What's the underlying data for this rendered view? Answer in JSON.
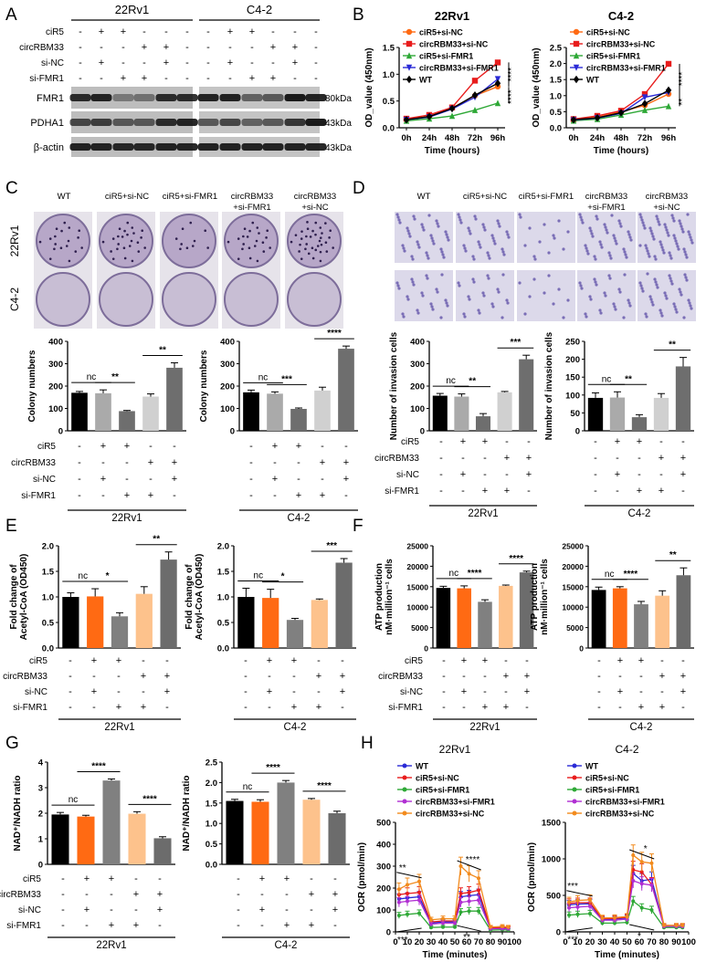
{
  "colors": {
    "wt": "#000000",
    "cir5_sinc": "#ff6a13",
    "circ_sinc": "#e81c1c",
    "cir5_sifmr1": "#2ea836",
    "circ_sifmr1": "#2a2ad6",
    "circ_sinc_h": "#f28b1d",
    "circ_sifmr1_h": "#b02fd2",
    "bar_black": "#000000",
    "bar_orange": "#ff6a13",
    "bar_grey": "#808080",
    "bar_light_orange": "#fdc28c",
    "bar_light_grey": "#d4d4d4",
    "bar_dark_grey": "#6c6c6c",
    "bar_mid_grey": "#a8a8a8",
    "bar_very_light_grey": "#dddddd"
  },
  "panels": {
    "A": {
      "letter": "A",
      "cell_lines": [
        "22Rv1",
        "C4-2"
      ],
      "row_labels": [
        "ciR5",
        "circRBM33",
        "si-NC",
        "si-FMR1"
      ],
      "signs_22rv1": [
        [
          "-",
          "+",
          "+",
          "-",
          "-",
          "-"
        ],
        [
          "-",
          "-",
          "-",
          "+",
          "+",
          "-"
        ],
        [
          "-",
          "+",
          "-",
          "-",
          "+",
          "-"
        ],
        [
          "-",
          "-",
          "+",
          "+",
          "-",
          "-"
        ]
      ],
      "signs_c42": [
        [
          "-",
          "+",
          "+",
          "-",
          "-",
          "-"
        ],
        [
          "-",
          "-",
          "-",
          "+",
          "+",
          "-"
        ],
        [
          "-",
          "+",
          "-",
          "-",
          "+",
          "-"
        ],
        [
          "-",
          "-",
          "+",
          "+",
          "-",
          "-"
        ]
      ],
      "blots": [
        {
          "name": "FMR1",
          "kda": "80kDa"
        },
        {
          "name": "PDHA1",
          "kda": "43kDa"
        },
        {
          "name": "β-actin",
          "kda": "43kDa"
        }
      ]
    },
    "B": {
      "letter": "B"
    },
    "C": {
      "letter": "C",
      "col_labels": [
        "WT",
        "ciR5+si-NC",
        "ciR5+si-FMR1",
        "circRBM33\n+si-FMR1",
        "circRBM33\n+si-NC"
      ],
      "row_labels": [
        "22Rv1",
        "C4-2"
      ]
    },
    "D": {
      "letter": "D",
      "col_labels": [
        "WT",
        "ciR5+si-NC",
        "ciR5+si-FMR1",
        "circRBM33\n+si-FMR1",
        "circRBM33\n+si-NC"
      ]
    },
    "E": {
      "letter": "E"
    },
    "F": {
      "letter": "F"
    },
    "G": {
      "letter": "G"
    },
    "H": {
      "letter": "H"
    }
  },
  "sign_table": {
    "labels": [
      "ciR5",
      "circRBM33",
      "si-NC",
      "si-FMR1"
    ],
    "signs": [
      [
        "-",
        "+",
        "+",
        "-",
        "-"
      ],
      [
        "-",
        "-",
        "-",
        "+",
        "+"
      ],
      [
        "-",
        "+",
        "-",
        "-",
        "+"
      ],
      [
        "-",
        "-",
        "+",
        "+",
        "-"
      ]
    ]
  },
  "chart_data": [
    {
      "id": "B1",
      "type": "line",
      "title": "22Rv1",
      "xlabel": "Time (hours)",
      "ylabel": "OD_value (450nm)",
      "categories": [
        "0h",
        "24h",
        "48h",
        "72h",
        "96h"
      ],
      "ylim": [
        0,
        1.5
      ],
      "yticks": [
        0.0,
        0.5,
        1.0,
        1.5
      ],
      "legend": [
        "ciR5+si-NC",
        "circRBM33+si-NC",
        "ciR5+si-FMR1",
        "circRBM33+si-FMR1",
        "WT"
      ],
      "series": [
        {
          "name": "ciR5+si-NC",
          "color": "#ff6a13",
          "marker": "circle",
          "values": [
            0.16,
            0.21,
            0.37,
            0.6,
            0.77
          ]
        },
        {
          "name": "circRBM33+si-NC",
          "color": "#e81c1c",
          "marker": "square",
          "values": [
            0.17,
            0.24,
            0.38,
            0.88,
            1.22
          ]
        },
        {
          "name": "ciR5+si-FMR1",
          "color": "#2ea836",
          "marker": "triangle",
          "values": [
            0.13,
            0.17,
            0.22,
            0.33,
            0.46
          ]
        },
        {
          "name": "circRBM33+si-FMR1",
          "color": "#2a2ad6",
          "marker": "triangle-down",
          "values": [
            0.15,
            0.2,
            0.35,
            0.57,
            0.91
          ]
        },
        {
          "name": "WT",
          "color": "#000000",
          "marker": "diamond",
          "values": [
            0.15,
            0.21,
            0.36,
            0.61,
            0.83
          ]
        }
      ],
      "annotations": [
        "****",
        "****"
      ]
    },
    {
      "id": "B2",
      "type": "line",
      "title": "C4-2",
      "xlabel": "Time (hours)",
      "ylabel": "OD_value (450nm)",
      "categories": [
        "0h",
        "24h",
        "48h",
        "72h",
        "96h"
      ],
      "ylim": [
        0,
        2.5
      ],
      "yticks": [
        0.0,
        0.5,
        1.0,
        1.5,
        2.0,
        2.5
      ],
      "legend": [
        "ciR5+si-NC",
        "circRBM33+si-NC",
        "ciR5+si-FMR1",
        "circRBM33+si-FMR1",
        "WT"
      ],
      "series": [
        {
          "name": "ciR5+si-NC",
          "color": "#ff6a13",
          "marker": "circle",
          "values": [
            0.25,
            0.33,
            0.5,
            0.7,
            1.05
          ]
        },
        {
          "name": "circRBM33+si-NC",
          "color": "#e81c1c",
          "marker": "square",
          "values": [
            0.27,
            0.37,
            0.53,
            1.05,
            1.99
          ]
        },
        {
          "name": "ciR5+si-FMR1",
          "color": "#2ea836",
          "marker": "triangle",
          "values": [
            0.22,
            0.27,
            0.4,
            0.55,
            0.67
          ]
        },
        {
          "name": "circRBM33+si-FMR1",
          "color": "#2a2ad6",
          "marker": "triangle-down",
          "values": [
            0.24,
            0.3,
            0.45,
            0.95,
            1.1
          ]
        },
        {
          "name": "WT",
          "color": "#000000",
          "marker": "diamond",
          "values": [
            0.25,
            0.31,
            0.47,
            0.75,
            1.17
          ]
        }
      ],
      "annotations": [
        "****",
        "**"
      ]
    },
    {
      "id": "C1",
      "type": "bar",
      "ylabel": "Colony numbers",
      "ylim": [
        0,
        400
      ],
      "yticks": [
        0,
        100,
        200,
        300,
        400
      ],
      "values": [
        170,
        168,
        88,
        153,
        282
      ],
      "errors": [
        6,
        15,
        3,
        12,
        22
      ],
      "colors": [
        "#000000",
        "#aaaaaa",
        "#6e6e6e",
        "#d0d0d0",
        "#6e6e6e"
      ],
      "sig": [
        {
          "from": 0,
          "to": 1,
          "label": "nc"
        },
        {
          "from": 1,
          "to": 2,
          "label": "**"
        },
        {
          "from": 3,
          "to": 4,
          "label": "**"
        }
      ],
      "group": "22Rv1"
    },
    {
      "id": "C2",
      "type": "bar",
      "ylabel": "Colony numbers",
      "ylim": [
        0,
        400
      ],
      "yticks": [
        0,
        100,
        200,
        300,
        400
      ],
      "values": [
        172,
        166,
        98,
        180,
        367
      ],
      "errors": [
        10,
        8,
        4,
        15,
        12
      ],
      "colors": [
        "#000000",
        "#aaaaaa",
        "#6e6e6e",
        "#d0d0d0",
        "#6e6e6e"
      ],
      "sig": [
        {
          "from": 0,
          "to": 1,
          "label": "nc"
        },
        {
          "from": 1,
          "to": 2,
          "label": "***"
        },
        {
          "from": 3,
          "to": 4,
          "label": "****"
        }
      ],
      "group": "C4-2"
    },
    {
      "id": "D1",
      "type": "bar",
      "ylabel": "Number of invasion cells",
      "ylim": [
        0,
        400
      ],
      "yticks": [
        0,
        100,
        200,
        300,
        400
      ],
      "values": [
        157,
        153,
        65,
        172,
        320
      ],
      "errors": [
        10,
        12,
        12,
        4,
        18
      ],
      "colors": [
        "#000000",
        "#aaaaaa",
        "#6e6e6e",
        "#d0d0d0",
        "#6e6e6e"
      ],
      "sig": [
        {
          "from": 0,
          "to": 1,
          "label": "nc"
        },
        {
          "from": 1,
          "to": 2,
          "label": "**"
        },
        {
          "from": 3,
          "to": 4,
          "label": "***"
        }
      ],
      "group": "22Rv1"
    },
    {
      "id": "D2",
      "type": "bar",
      "ylabel": "Number of invasion cells",
      "ylim": [
        0,
        250
      ],
      "yticks": [
        0,
        50,
        100,
        150,
        200,
        250
      ],
      "values": [
        92,
        93,
        38,
        92,
        180
      ],
      "errors": [
        14,
        16,
        7,
        12,
        25
      ],
      "colors": [
        "#000000",
        "#aaaaaa",
        "#6e6e6e",
        "#d0d0d0",
        "#6e6e6e"
      ],
      "sig": [
        {
          "from": 0,
          "to": 1,
          "label": "nc"
        },
        {
          "from": 1,
          "to": 2,
          "label": "**"
        },
        {
          "from": 3,
          "to": 4,
          "label": "**"
        }
      ],
      "group": "C4-2"
    },
    {
      "id": "E1",
      "type": "bar",
      "ylabel": "Fold change of\nAcetyl-CoA (OD450)",
      "ylim": [
        0,
        2.0
      ],
      "yticks": [
        0.0,
        0.5,
        1.0,
        1.5,
        2.0
      ],
      "values": [
        1.0,
        1.01,
        0.62,
        1.06,
        1.73
      ],
      "errors": [
        0.08,
        0.15,
        0.07,
        0.14,
        0.15
      ],
      "colors": [
        "#000000",
        "#ff6a13",
        "#808080",
        "#fdc28c",
        "#6c6c6c"
      ],
      "sig": [
        {
          "from": 0,
          "to": 1,
          "label": "nc"
        },
        {
          "from": 1,
          "to": 2,
          "label": "*"
        },
        {
          "from": 3,
          "to": 4,
          "label": "**"
        }
      ],
      "group": "22Rv1"
    },
    {
      "id": "E2",
      "type": "bar",
      "ylabel": "Fold change of\nAcetyl-CoA (OD450)",
      "ylim": [
        0,
        2.0
      ],
      "yticks": [
        0.0,
        0.5,
        1.0,
        1.5,
        2.0
      ],
      "values": [
        1.0,
        0.98,
        0.55,
        0.94,
        1.67
      ],
      "errors": [
        0.17,
        0.17,
        0.03,
        0.02,
        0.08
      ],
      "colors": [
        "#000000",
        "#ff6a13",
        "#808080",
        "#fdc28c",
        "#6c6c6c"
      ],
      "sig": [
        {
          "from": 0,
          "to": 1,
          "label": "nc"
        },
        {
          "from": 1,
          "to": 2,
          "label": "*"
        },
        {
          "from": 3,
          "to": 4,
          "label": "***"
        }
      ],
      "group": "C4-2"
    },
    {
      "id": "F1",
      "type": "bar",
      "ylabel": "ATP production\nnM·million⁻¹ cells",
      "ylim": [
        0,
        25000
      ],
      "yticks": [
        0,
        5000,
        10000,
        15000,
        20000,
        25000
      ],
      "values": [
        14700,
        14600,
        11300,
        15200,
        18500
      ],
      "errors": [
        400,
        600,
        500,
        200,
        300
      ],
      "colors": [
        "#000000",
        "#ff6a13",
        "#808080",
        "#fdc28c",
        "#6c6c6c"
      ],
      "sig": [
        {
          "from": 0,
          "to": 1,
          "label": "nc"
        },
        {
          "from": 1,
          "to": 2,
          "label": "****"
        },
        {
          "from": 3,
          "to": 4,
          "label": "****"
        }
      ],
      "group": "22Rv1"
    },
    {
      "id": "F2",
      "type": "bar",
      "ylabel": "ATP production\nnM·million⁻¹ cells",
      "ylim": [
        0,
        25000
      ],
      "yticks": [
        0,
        5000,
        10000,
        15000,
        20000,
        25000
      ],
      "values": [
        14200,
        14600,
        10700,
        12800,
        17800
      ],
      "errors": [
        700,
        400,
        700,
        1200,
        1800
      ],
      "colors": [
        "#000000",
        "#ff6a13",
        "#808080",
        "#fdc28c",
        "#6c6c6c"
      ],
      "sig": [
        {
          "from": 0,
          "to": 1,
          "label": "nc"
        },
        {
          "from": 1,
          "to": 2,
          "label": "****"
        },
        {
          "from": 3,
          "to": 4,
          "label": "**"
        }
      ],
      "group": "C4-2"
    },
    {
      "id": "G1",
      "type": "bar",
      "ylabel": "NAD⁺/NADH ratio",
      "ylim": [
        0,
        4
      ],
      "yticks": [
        0,
        1,
        2,
        3,
        4
      ],
      "values": [
        1.95,
        1.87,
        3.28,
        1.98,
        1.02
      ],
      "errors": [
        0.08,
        0.05,
        0.06,
        0.08,
        0.06
      ],
      "colors": [
        "#000000",
        "#ff6a13",
        "#808080",
        "#fdc28c",
        "#6c6c6c"
      ],
      "sig": [
        {
          "from": 0,
          "to": 1,
          "label": "nc"
        },
        {
          "from": 1,
          "to": 2,
          "label": "****"
        },
        {
          "from": 3,
          "to": 4,
          "label": "****"
        }
      ],
      "group": "22Rv1"
    },
    {
      "id": "G2",
      "type": "bar",
      "ylabel": "NAD⁺/NADH ratio",
      "ylim": [
        0,
        2.5
      ],
      "yticks": [
        0.0,
        0.5,
        1.0,
        1.5,
        2.0,
        2.5
      ],
      "values": [
        1.55,
        1.53,
        2.0,
        1.58,
        1.25
      ],
      "errors": [
        0.04,
        0.05,
        0.05,
        0.03,
        0.05
      ],
      "colors": [
        "#000000",
        "#ff6a13",
        "#808080",
        "#fdc28c",
        "#6c6c6c"
      ],
      "sig": [
        {
          "from": 0,
          "to": 1,
          "label": "nc"
        },
        {
          "from": 1,
          "to": 2,
          "label": "****"
        },
        {
          "from": 3,
          "to": 4,
          "label": "****"
        }
      ],
      "group": "C4-2"
    },
    {
      "id": "H1",
      "type": "line",
      "title": "22Rv1",
      "xlabel": "Time (minutes)",
      "ylabel": "OCR (pmol/min)",
      "ylim": [
        0,
        500
      ],
      "yticks": [
        0,
        100,
        200,
        300,
        400,
        500
      ],
      "x": [
        3,
        10,
        20,
        30,
        40,
        50,
        55,
        62,
        70,
        80,
        90,
        95
      ],
      "xticks": [
        0,
        10,
        20,
        30,
        40,
        50,
        60,
        70,
        80,
        90,
        100
      ],
      "legend": [
        "WT",
        "ciR5+si-NC",
        "ciR5+si-FMR1",
        "circRBM33+si-FMR1",
        "circRBM33+si-NC"
      ],
      "series": [
        {
          "name": "WT",
          "color": "#2a2ad6",
          "values": [
            150,
            155,
            160,
            40,
            45,
            45,
            160,
            165,
            170,
            15,
            18,
            15
          ]
        },
        {
          "name": "ciR5+si-NC",
          "color": "#e81c1c",
          "values": [
            170,
            175,
            180,
            45,
            50,
            50,
            175,
            180,
            190,
            18,
            20,
            18
          ]
        },
        {
          "name": "ciR5+si-FMR1",
          "color": "#2ea836",
          "values": [
            75,
            80,
            85,
            20,
            22,
            22,
            90,
            95,
            95,
            8,
            10,
            8
          ]
        },
        {
          "name": "circRBM33+si-FMR1",
          "color": "#b02fd2",
          "values": [
            135,
            140,
            145,
            35,
            40,
            40,
            135,
            140,
            145,
            14,
            15,
            14
          ]
        },
        {
          "name": "circRBM33+si-NC",
          "color": "#f28b1d",
          "values": [
            195,
            215,
            230,
            55,
            60,
            60,
            300,
            265,
            245,
            22,
            25,
            22
          ]
        }
      ],
      "annotations": [
        "**",
        "***",
        "****",
        "**"
      ]
    },
    {
      "id": "H2",
      "type": "line",
      "title": "C4-2",
      "xlabel": "Time (minutes)",
      "ylabel": "OCR (pmol/min)",
      "ylim": [
        0,
        1500
      ],
      "yticks": [
        0,
        500,
        1000,
        1500
      ],
      "x": [
        3,
        10,
        20,
        30,
        40,
        50,
        55,
        62,
        70,
        80,
        90,
        95
      ],
      "xticks": [
        0,
        10,
        20,
        30,
        40,
        50,
        60,
        70,
        80,
        90,
        100
      ],
      "legend": [
        "WT",
        "ciR5+si-NC",
        "ciR5+si-FMR1",
        "circRBM33+si-FMR1",
        "circRBM33+si-NC"
      ],
      "series": [
        {
          "name": "WT",
          "color": "#2a2ad6",
          "values": [
            370,
            380,
            385,
            170,
            175,
            190,
            800,
            700,
            720,
            80,
            80,
            80
          ]
        },
        {
          "name": "ciR5+si-NC",
          "color": "#e81c1c",
          "values": [
            390,
            400,
            400,
            180,
            185,
            200,
            850,
            820,
            650,
            85,
            85,
            85
          ]
        },
        {
          "name": "ciR5+si-FMR1",
          "color": "#2ea836",
          "values": [
            230,
            240,
            250,
            120,
            120,
            130,
            420,
            330,
            300,
            60,
            60,
            60
          ]
        },
        {
          "name": "circRBM33+si-FMR1",
          "color": "#b02fd2",
          "values": [
            330,
            340,
            350,
            160,
            160,
            175,
            700,
            660,
            640,
            75,
            75,
            75
          ]
        },
        {
          "name": "circRBM33+si-NC",
          "color": "#f28b1d",
          "values": [
            410,
            430,
            440,
            190,
            195,
            210,
            1050,
            960,
            940,
            90,
            90,
            90
          ]
        }
      ],
      "annotations": [
        "***",
        "***",
        "*",
        "*"
      ]
    }
  ]
}
